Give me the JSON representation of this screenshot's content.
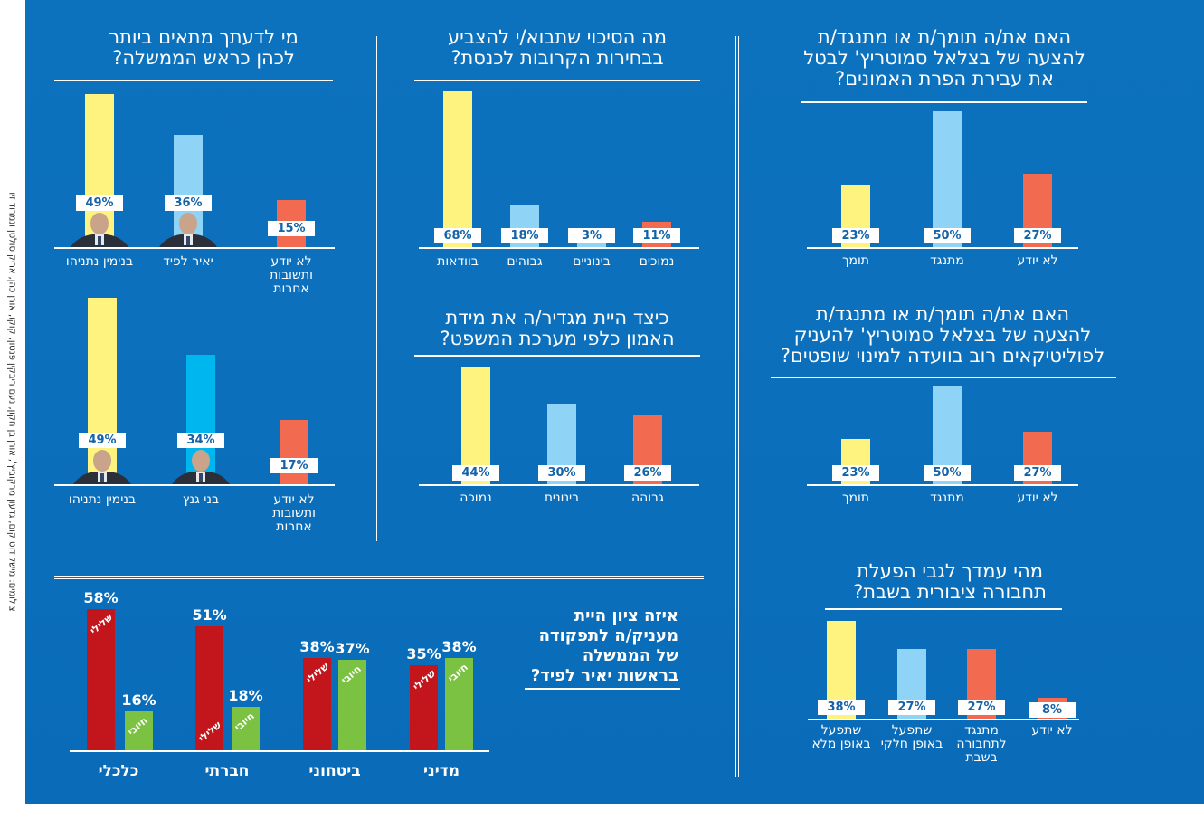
{
  "credit": "צילומים: מישל דוט קום, גדעון מרקוביץ', אורן בן חקון, נעם ריבקין פנטון, קוקו, אורן כהן, אריק סולטן ונמרוד זיו",
  "colors": {
    "background": "#0b6fbc",
    "yellow": "#fff37f",
    "light_blue": "#8fd3f7",
    "cyan": "#00b6ee",
    "orange": "#f26a4f",
    "red": "#c3161c",
    "green": "#7cc242",
    "label_text": "#1463a8"
  },
  "chart_data": [
    {
      "id": "pm_lapid",
      "type": "bar",
      "title": "מי לדעתך מתאים ביותר\nלכהן כראש הממשלה?",
      "categories": [
        "בנימין נתניהו",
        "יאיר לפיד",
        "לא יודע\nותשובות\nאחרות"
      ],
      "values": [
        49,
        36,
        15
      ],
      "colors": [
        "yellow",
        "light_blue",
        "orange"
      ],
      "portraits": [
        true,
        true,
        false
      ],
      "ylim": [
        0,
        50
      ],
      "unit": "%"
    },
    {
      "id": "pm_gantz",
      "type": "bar",
      "title": "",
      "categories": [
        "בנימין נתניהו",
        "בני גנץ",
        "לא יודע\nותשובות\nאחרות"
      ],
      "values": [
        49,
        34,
        17
      ],
      "colors": [
        "yellow",
        "cyan",
        "orange"
      ],
      "portraits": [
        true,
        true,
        false
      ],
      "ylim": [
        0,
        50
      ],
      "unit": "%"
    },
    {
      "id": "vote_chance",
      "type": "bar",
      "title": "מה הסיכוי שתבוא/י להצביע\nבבחירות הקרובות לכנסת?",
      "categories": [
        "בוודאות",
        "גבוהים",
        "בינוניים",
        "נמוכים"
      ],
      "values": [
        68,
        18,
        3,
        11
      ],
      "colors": [
        "yellow",
        "light_blue",
        "light_blue",
        "orange"
      ],
      "ylim": [
        0,
        68
      ],
      "unit": "%"
    },
    {
      "id": "judicial_trust",
      "type": "bar",
      "title": "כיצד היית מגדיר/ה את מידת\nהאמון כלפי מערכת המשפט?",
      "categories": [
        "נמוכה",
        "בינונית",
        "גבוהה"
      ],
      "values": [
        44,
        30,
        26
      ],
      "colors": [
        "yellow",
        "light_blue",
        "orange"
      ],
      "ylim": [
        0,
        44
      ],
      "unit": "%"
    },
    {
      "id": "override_clause",
      "type": "bar",
      "title": "האם את/ה תומך/ת או מתנגד/ת\nלהצעה של בצלאל סמוטריץ' לבטל\nאת עבירת הפרת האמונים?",
      "categories": [
        "תומך",
        "מתנגד",
        "לא יודע"
      ],
      "values": [
        23,
        50,
        27
      ],
      "colors": [
        "yellow",
        "light_blue",
        "orange"
      ],
      "ylim": [
        0,
        50
      ],
      "unit": "%"
    },
    {
      "id": "judges_committee",
      "type": "bar",
      "title": "האם את/ה תומך/ת או מתנגד/ת\nלהצעה של בצלאל סמוטריץ' להעניק\nלפוליטיקאים רוב בוועדה למינוי שופטים?",
      "categories": [
        "תומך",
        "מתנגד",
        "לא יודע"
      ],
      "values": [
        23,
        50,
        27
      ],
      "colors": [
        "yellow",
        "light_blue",
        "orange"
      ],
      "ylim": [
        0,
        50
      ],
      "unit": "%"
    },
    {
      "id": "shabbat_transport",
      "type": "bar",
      "title": "מהי עמדך לגבי הפעלת\nתחבורה ציבורית בשבת?",
      "categories": [
        "שתפעל\nבאופן מלא",
        "שתפעל\nבאופן חלקי",
        "מתנגד\nלתחבורה\nבשבת",
        "לא יודע"
      ],
      "values": [
        38,
        27,
        27,
        8
      ],
      "colors": [
        "yellow",
        "light_blue",
        "orange",
        "orange"
      ],
      "ylim": [
        0,
        38
      ],
      "unit": "%"
    },
    {
      "id": "lapid_grades",
      "type": "bar",
      "title": "איזה ציון היית\nמעניק/ה לתפקודה\nשל הממשלה\nבראשות יאיר לפיד?",
      "categories": [
        "כלכלי",
        "חברתי",
        "ביטחוני",
        "מדיני"
      ],
      "series": [
        {
          "name": "שלילי",
          "color": "red",
          "values": [
            58,
            51,
            38,
            35
          ]
        },
        {
          "name": "חיובי",
          "color": "green",
          "values": [
            16,
            18,
            37,
            38
          ]
        }
      ],
      "ylim": [
        0,
        58
      ],
      "unit": "%"
    }
  ]
}
